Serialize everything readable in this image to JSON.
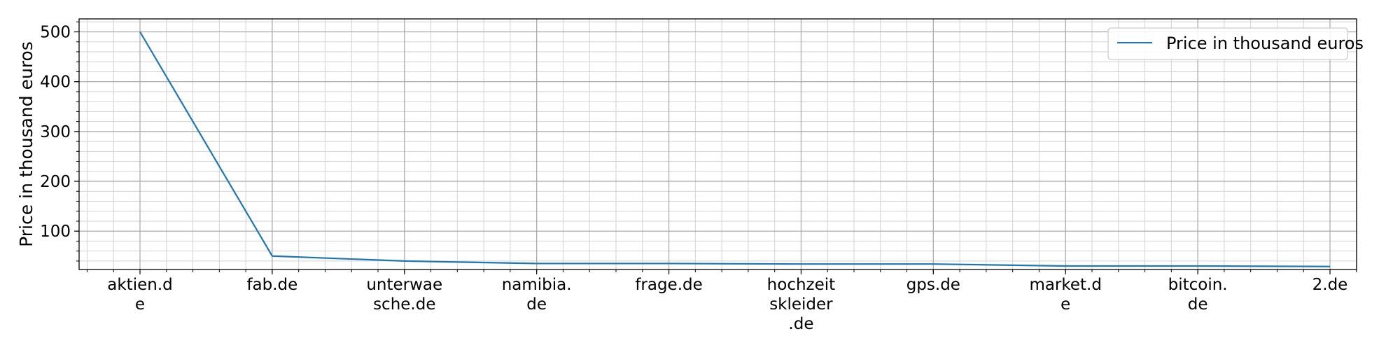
{
  "chart_data": {
    "type": "line",
    "categories": [
      "aktien.de",
      "fab.de",
      "unterwaesche.de",
      "namibia.de",
      "frage.de",
      "hochzeitskleider.de",
      "gps.de",
      "market.de",
      "bitcoin.de",
      "2.de"
    ],
    "category_tick_lines": [
      [
        "aktien.d",
        "e"
      ],
      [
        "fab.de"
      ],
      [
        "unterwae",
        "sche.de"
      ],
      [
        "namibia.",
        "de"
      ],
      [
        "frage.de"
      ],
      [
        "hochzeit",
        "skleider",
        ".de"
      ],
      [
        "gps.de"
      ],
      [
        "market.d",
        "e"
      ],
      [
        "bitcoin.",
        "de"
      ],
      [
        "2.de"
      ]
    ],
    "series": [
      {
        "name": "Price in thousand euros",
        "color": "#1f77b4",
        "values": [
          500,
          50,
          40,
          35,
          35,
          34,
          34,
          30,
          30,
          29
        ]
      }
    ],
    "xlabel": "",
    "ylabel": "Price in thousand euros",
    "ylim": [
      23,
      526
    ],
    "yticks": [
      100,
      200,
      300,
      400,
      500
    ],
    "ytick_labels": [
      "100",
      "200",
      "300",
      "400",
      "500"
    ],
    "grid": true,
    "minor_grid": true,
    "legend_position": "top-right"
  }
}
